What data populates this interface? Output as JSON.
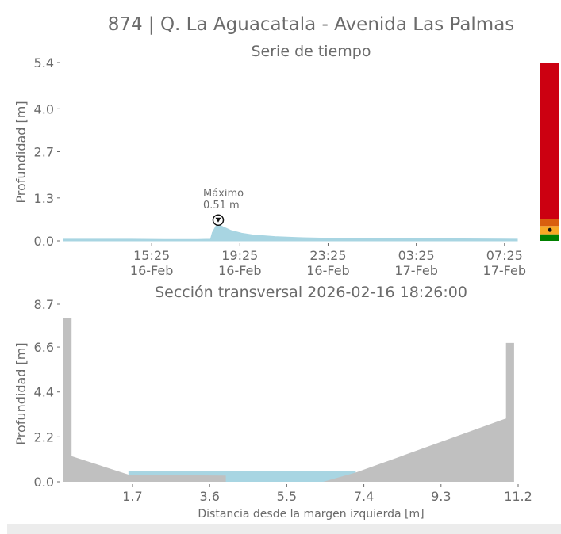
{
  "title": "874 | Q. La Aguacatala - Avenida Las Palmas",
  "chart_data": [
    {
      "type": "area",
      "title": "Serie de tiempo",
      "xlabel": "",
      "ylabel": "Profundidad [m]",
      "ylim": [
        0,
        5.4
      ],
      "yticks": [
        "0.0",
        "1.3",
        "2.7",
        "4.0",
        "5.4"
      ],
      "yticks_values": [
        0.0,
        1.3,
        2.7,
        4.0,
        5.4
      ],
      "xlim": [
        "2026-02-16 11:25",
        "2026-02-17 08:00"
      ],
      "xticks": [
        {
          "t": "2026-02-16 15:25",
          "time": "15:25",
          "date": "16-Feb"
        },
        {
          "t": "2026-02-16 19:25",
          "time": "19:25",
          "date": "16-Feb"
        },
        {
          "t": "2026-02-16 23:25",
          "time": "23:25",
          "date": "16-Feb"
        },
        {
          "t": "2026-02-17 03:25",
          "time": "03:25",
          "date": "17-Feb"
        },
        {
          "t": "2026-02-17 07:25",
          "time": "07:25",
          "date": "17-Feb"
        }
      ],
      "series": [
        {
          "color": "#a8d5e2",
          "points": [
            [
              "2026-02-16 11:25",
              0.05
            ],
            [
              "2026-02-16 13:00",
              0.05
            ],
            [
              "2026-02-16 14:30",
              0.05
            ],
            [
              "2026-02-16 16:00",
              0.04
            ],
            [
              "2026-02-16 17:30",
              0.04
            ],
            [
              "2026-02-16 18:05",
              0.05
            ],
            [
              "2026-02-16 18:10",
              0.25
            ],
            [
              "2026-02-16 18:20",
              0.45
            ],
            [
              "2026-02-16 18:26",
              0.51
            ],
            [
              "2026-02-16 18:40",
              0.42
            ],
            [
              "2026-02-16 19:00",
              0.32
            ],
            [
              "2026-02-16 19:30",
              0.23
            ],
            [
              "2026-02-16 20:00",
              0.18
            ],
            [
              "2026-02-16 21:00",
              0.13
            ],
            [
              "2026-02-16 22:00",
              0.1
            ],
            [
              "2026-02-16 23:30",
              0.08
            ],
            [
              "2026-02-17 01:30",
              0.07
            ],
            [
              "2026-02-17 03:30",
              0.06
            ],
            [
              "2026-02-17 05:30",
              0.06
            ],
            [
              "2026-02-17 08:00",
              0.05
            ]
          ]
        }
      ],
      "annotation": {
        "label": "Máximo",
        "value_text": "0.51 m",
        "t": "2026-02-16 18:26",
        "y": 0.51
      },
      "threshold_bar": {
        "levels": [
          {
            "from": 0.0,
            "to": 0.2,
            "color": "#008000"
          },
          {
            "from": 0.2,
            "to": 0.45,
            "color": "#f7a825"
          },
          {
            "from": 0.45,
            "to": 0.65,
            "color": "#d95f0e"
          },
          {
            "from": 0.65,
            "to": 5.4,
            "color": "#cc0011"
          }
        ],
        "current_value": 0.1
      },
      "grid": false
    },
    {
      "type": "area",
      "title": "Sección transversal 2026-02-16 18:26:00",
      "xlabel": "Distancia desde la margen izquierda [m]",
      "ylabel": "Profundidad [m]",
      "xlim": [
        0.0,
        11.2
      ],
      "ylim": [
        0,
        8.7
      ],
      "xticks": [
        "1.7",
        "3.6",
        "5.5",
        "7.4",
        "9.3",
        "11.2"
      ],
      "xticks_values": [
        1.7,
        3.6,
        5.5,
        7.4,
        9.3,
        11.2
      ],
      "yticks": [
        "0.0",
        "2.2",
        "4.4",
        "6.6",
        "8.7"
      ],
      "yticks_values": [
        0.0,
        2.2,
        4.4,
        6.6,
        8.7
      ],
      "terrain": {
        "color": "#c0c0c0",
        "points": [
          [
            0.0,
            8.0
          ],
          [
            0.2,
            8.0
          ],
          [
            0.2,
            1.25
          ],
          [
            1.6,
            0.35
          ],
          [
            4.0,
            0.3
          ],
          [
            4.0,
            0.0
          ],
          [
            6.4,
            0.0
          ],
          [
            7.2,
            0.45
          ],
          [
            10.9,
            3.1
          ],
          [
            10.9,
            6.8
          ],
          [
            11.1,
            6.8
          ],
          [
            11.1,
            0.0
          ],
          [
            0.0,
            0.0
          ]
        ]
      },
      "water": {
        "color": "#a8d5e2",
        "level": 0.51,
        "from": 1.6,
        "to": 7.2
      },
      "grid": false
    }
  ]
}
